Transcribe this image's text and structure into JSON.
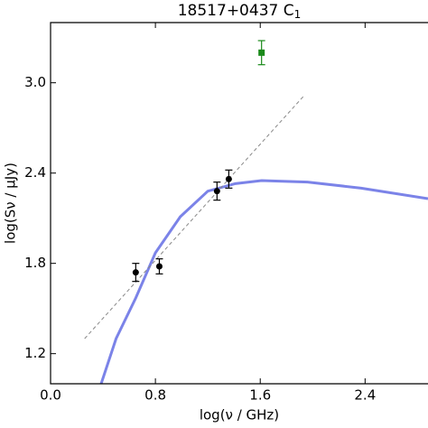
{
  "chart_data": {
    "type": "scatter",
    "title": "18517+0437 C",
    "title_subscript": "1",
    "xlabel": "log(ν / GHz)",
    "ylabel": "log(Sν / μJy)",
    "xlim": [
      0,
      2.88
    ],
    "ylim": [
      1.0,
      3.4
    ],
    "xticks": [
      {
        "value": 0,
        "label": "0.0"
      },
      0.8,
      1.6,
      2.4
    ],
    "yticks": [
      1.2,
      1.8,
      2.4,
      {
        "value": 3,
        "label": "3.0"
      }
    ],
    "series": [
      {
        "color": "#7b83e8",
        "line": "solid",
        "x": [
          0.386,
          0.5,
          0.65,
          0.8,
          0.99,
          1.2,
          1.41,
          1.61,
          1.96,
          2.37,
          2.88
        ],
        "values": [
          1.0,
          1.3,
          1.57,
          1.87,
          2.11,
          2.28,
          2.33,
          2.35,
          2.34,
          2.3,
          2.23
        ]
      },
      {
        "color": "#888888",
        "line": "dashed",
        "x": [
          0.26,
          1.94
        ],
        "values": [
          1.3,
          2.92
        ]
      },
      {
        "color": "#000000",
        "marker": "circle",
        "x": [
          0.65,
          0.83,
          1.27,
          1.36
        ],
        "values": [
          1.74,
          1.78,
          2.28,
          2.36
        ],
        "errors": [
          0.06,
          0.05,
          0.06,
          0.06
        ]
      },
      {
        "color": "#1a8a1a",
        "marker": "square",
        "x": [
          1.61
        ],
        "values": [
          3.2
        ],
        "errors": [
          0.08
        ]
      }
    ]
  }
}
